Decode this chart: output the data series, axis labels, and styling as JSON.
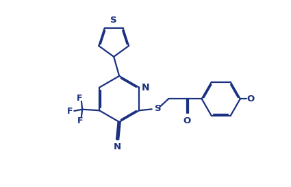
{
  "background_color": "#ffffff",
  "line_color": "#1a3080",
  "line_width": 1.6,
  "dbo": 0.05,
  "fig_width": 4.25,
  "fig_height": 2.73,
  "dpi": 100,
  "fs": 7.5,
  "xlim": [
    -1,
    9
  ],
  "ylim": [
    -1,
    7.5
  ]
}
